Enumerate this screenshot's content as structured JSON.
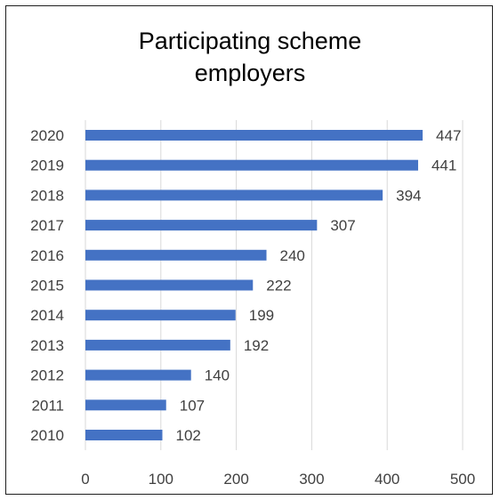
{
  "chart_data": {
    "type": "bar",
    "orientation": "horizontal",
    "title": "Participating scheme\nemployers",
    "categories": [
      "2010",
      "2011",
      "2012",
      "2013",
      "2014",
      "2015",
      "2016",
      "2017",
      "2018",
      "2019",
      "2020"
    ],
    "values": [
      102,
      107,
      140,
      192,
      199,
      222,
      240,
      307,
      394,
      441,
      447
    ],
    "xlim": [
      0,
      500
    ],
    "xticks": [
      0,
      100,
      200,
      300,
      400,
      500
    ],
    "grid": true,
    "legend": "none",
    "bar_color": "#4472c4",
    "grid_color": "#d9d9d9",
    "label_color": "#404040"
  }
}
